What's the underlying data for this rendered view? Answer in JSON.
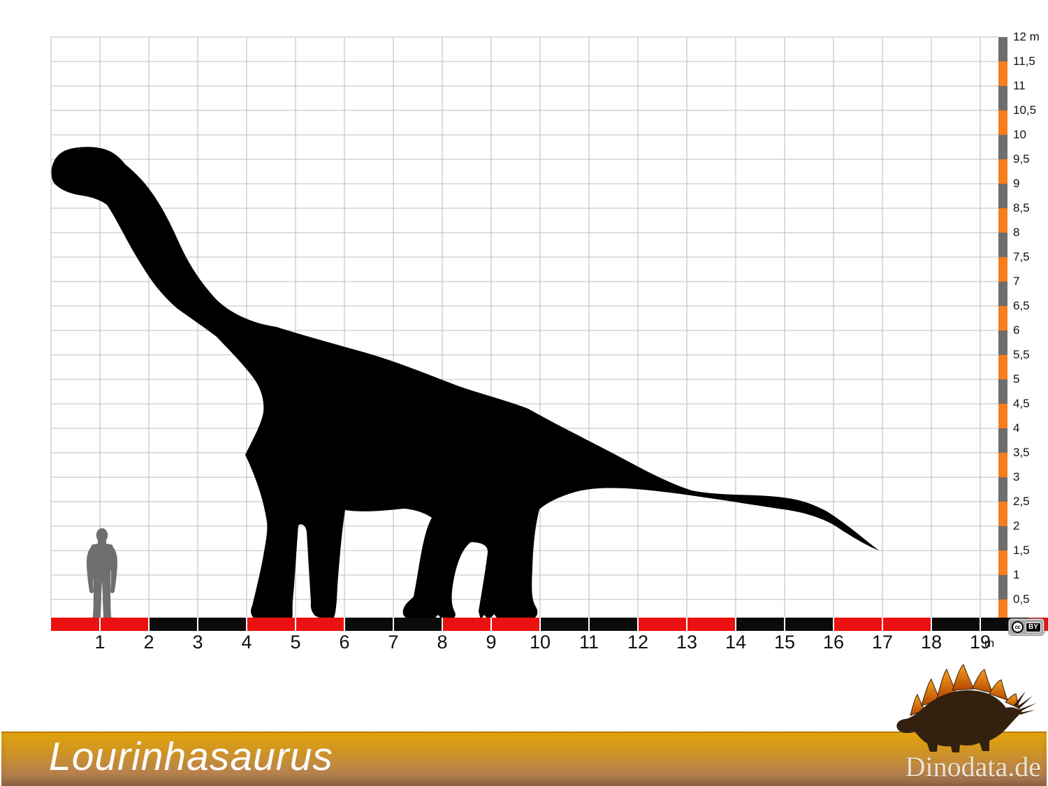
{
  "page": {
    "title": "Lourinhasaurus"
  },
  "branding": {
    "site": "Dinodata.de",
    "logo": "stegosaurus-logo"
  },
  "license": {
    "cc": "cc",
    "by": "BY"
  },
  "axes": {
    "unit": "m",
    "x_ticks": [
      "1",
      "2",
      "3",
      "4",
      "5",
      "6",
      "7",
      "8",
      "9",
      "10",
      "11",
      "12",
      "13",
      "14",
      "15",
      "16",
      "17",
      "18",
      "19"
    ],
    "y_ticks": [
      "12 m",
      "11,5",
      "11",
      "10,5",
      "10",
      "9,5",
      "9",
      "8,5",
      "8",
      "7,5",
      "7",
      "6,5",
      "6",
      "5,5",
      "5",
      "4,5",
      "4",
      "3,5",
      "3",
      "2,5",
      "2",
      "1,5",
      "1",
      "0,5"
    ]
  },
  "figures": {
    "dinosaur": "Lourinhasaurus silhouette",
    "human": "human silhouette"
  },
  "colors": {
    "red": "#ec1111",
    "black": "#0b0b0b",
    "orange": "#f57e1e",
    "gray": "#6e6e6e",
    "grid": "#c9c9c9",
    "dino": "#000000",
    "human": "#6f6f6f",
    "banner_top": "#e2a30f",
    "banner_bottom": "#9b7050",
    "logo_body": "#33200f",
    "logo_plate_top": "#f9a11f",
    "logo_plate_bottom": "#b34700"
  }
}
